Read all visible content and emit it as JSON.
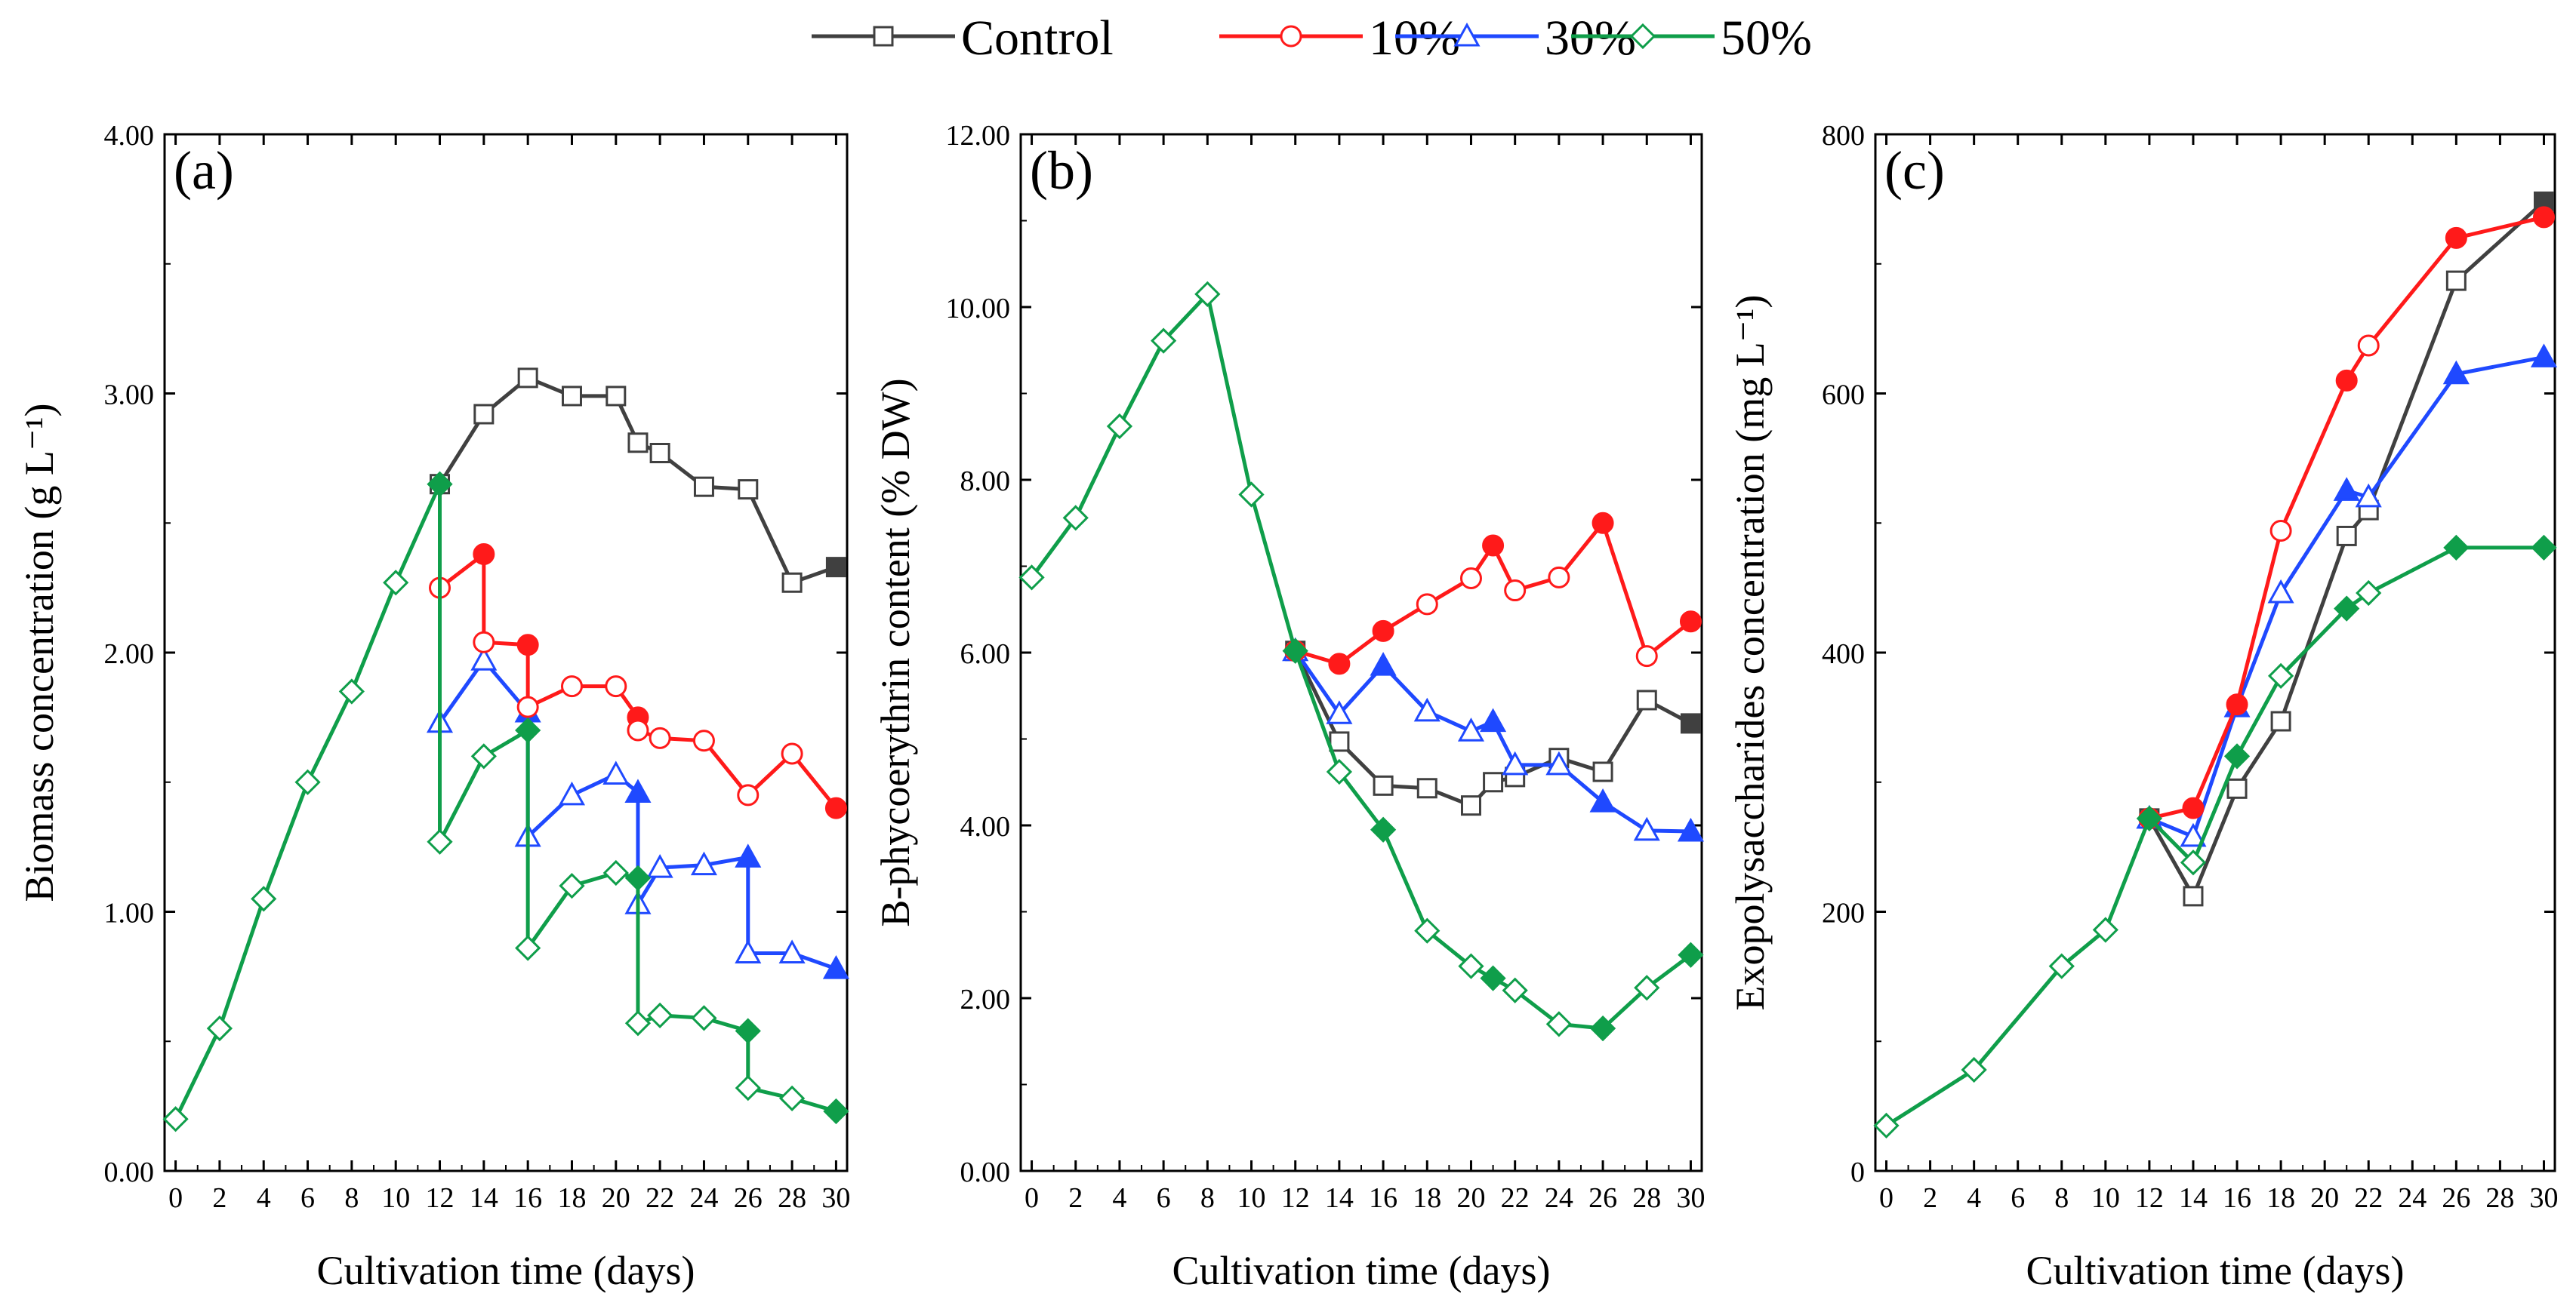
{
  "legend": [
    {
      "name": "Control",
      "color": "#404040",
      "marker": "square"
    },
    {
      "name": "10%",
      "color": "#ff1a1a",
      "marker": "circle"
    },
    {
      "name": "30%",
      "color": "#1f49ff",
      "marker": "triangle"
    },
    {
      "name": "50%",
      "color": "#0f9e4a",
      "marker": "diamond"
    }
  ],
  "chart_data": [
    {
      "type": "line",
      "panel_label": "(a)",
      "xlabel": "Cultivation time (days)",
      "ylabel": "Biomass concentration (g L⁻¹)",
      "xlim": [
        -0.5,
        30.5
      ],
      "xticks": [
        0,
        2,
        4,
        6,
        8,
        10,
        12,
        14,
        16,
        18,
        20,
        22,
        24,
        26,
        28,
        30
      ],
      "ylim": [
        0,
        4
      ],
      "yticks": [
        0,
        1,
        2,
        3,
        4
      ],
      "ytick_labels": [
        "0.00",
        "1.00",
        "2.00",
        "3.00",
        "4.00"
      ],
      "series": [
        {
          "name": "Control",
          "color": "#404040",
          "marker": "square",
          "points": [
            {
              "x": 12,
              "y": 2.65
            },
            {
              "x": 14,
              "y": 2.92
            },
            {
              "x": 16,
              "y": 3.06
            },
            {
              "x": 18,
              "y": 2.99
            },
            {
              "x": 20,
              "y": 2.99
            },
            {
              "x": 21,
              "y": 2.81
            },
            {
              "x": 22,
              "y": 2.77
            },
            {
              "x": 24,
              "y": 2.64
            },
            {
              "x": 26,
              "y": 2.63
            },
            {
              "x": 28,
              "y": 2.27
            },
            {
              "x": 30,
              "y": 2.33,
              "filled": true
            }
          ]
        },
        {
          "name": "10%",
          "color": "#ff1a1a",
          "marker": "circle",
          "points": [
            {
              "x": 12,
              "y": 2.25
            },
            {
              "x": 14,
              "y": 2.38,
              "filled": true
            },
            {
              "x": 14,
              "y": 2.04
            },
            {
              "x": 16,
              "y": 2.03,
              "filled": true
            },
            {
              "x": 16,
              "y": 1.79
            },
            {
              "x": 18,
              "y": 1.87
            },
            {
              "x": 20,
              "y": 1.87
            },
            {
              "x": 21,
              "y": 1.75,
              "filled": true
            },
            {
              "x": 21,
              "y": 1.7
            },
            {
              "x": 22,
              "y": 1.67
            },
            {
              "x": 24,
              "y": 1.66
            },
            {
              "x": 26,
              "y": 1.45
            },
            {
              "x": 28,
              "y": 1.61
            },
            {
              "x": 30,
              "y": 1.4,
              "filled": true
            }
          ]
        },
        {
          "name": "30%",
          "color": "#1f49ff",
          "marker": "triangle",
          "points": [
            {
              "x": 12,
              "y": 1.73
            },
            {
              "x": 14,
              "y": 1.97
            },
            {
              "x": 16,
              "y": 1.77,
              "filled": true
            },
            {
              "x": 16,
              "y": 1.29
            },
            {
              "x": 18,
              "y": 1.45
            },
            {
              "x": 20,
              "y": 1.53
            },
            {
              "x": 21,
              "y": 1.46,
              "filled": true
            },
            {
              "x": 21,
              "y": 1.03
            },
            {
              "x": 22,
              "y": 1.17
            },
            {
              "x": 24,
              "y": 1.18
            },
            {
              "x": 26,
              "y": 1.21,
              "filled": true
            },
            {
              "x": 26,
              "y": 0.84
            },
            {
              "x": 28,
              "y": 0.84
            },
            {
              "x": 30,
              "y": 0.78,
              "filled": true
            }
          ]
        },
        {
          "name": "50%",
          "color": "#0f9e4a",
          "marker": "diamond",
          "points": [
            {
              "x": 0,
              "y": 0.2
            },
            {
              "x": 2,
              "y": 0.55
            },
            {
              "x": 4,
              "y": 1.05
            },
            {
              "x": 6,
              "y": 1.5
            },
            {
              "x": 8,
              "y": 1.85
            },
            {
              "x": 10,
              "y": 2.27
            },
            {
              "x": 12,
              "y": 2.65,
              "filled": true
            },
            {
              "x": 12,
              "y": 1.27
            },
            {
              "x": 14,
              "y": 1.6
            },
            {
              "x": 16,
              "y": 1.7,
              "filled": true
            },
            {
              "x": 16,
              "y": 0.86
            },
            {
              "x": 18,
              "y": 1.1
            },
            {
              "x": 20,
              "y": 1.15
            },
            {
              "x": 21,
              "y": 1.13,
              "filled": true
            },
            {
              "x": 21,
              "y": 0.57
            },
            {
              "x": 22,
              "y": 0.6
            },
            {
              "x": 24,
              "y": 0.59
            },
            {
              "x": 26,
              "y": 0.54,
              "filled": true
            },
            {
              "x": 26,
              "y": 0.32
            },
            {
              "x": 28,
              "y": 0.28
            },
            {
              "x": 30,
              "y": 0.23,
              "filled": true
            }
          ]
        }
      ]
    },
    {
      "type": "line",
      "panel_label": "(b)",
      "xlabel": "Cultivation time (days)",
      "ylabel": "B-phycoerythrin content (% DW)",
      "xlim": [
        -0.5,
        30.5
      ],
      "xticks": [
        0,
        2,
        4,
        6,
        8,
        10,
        12,
        14,
        16,
        18,
        20,
        22,
        24,
        26,
        28,
        30
      ],
      "ylim": [
        0,
        12
      ],
      "yticks": [
        0,
        2,
        4,
        6,
        8,
        10,
        12
      ],
      "ytick_labels": [
        "0.00",
        "2.00",
        "4.00",
        "6.00",
        "8.00",
        "10.00",
        "12.00"
      ],
      "series": [
        {
          "name": "Control",
          "color": "#404040",
          "marker": "square",
          "points": [
            {
              "x": 12,
              "y": 6.02
            },
            {
              "x": 14,
              "y": 4.97
            },
            {
              "x": 16,
              "y": 4.46
            },
            {
              "x": 18,
              "y": 4.43
            },
            {
              "x": 20,
              "y": 4.23
            },
            {
              "x": 21,
              "y": 4.5
            },
            {
              "x": 22,
              "y": 4.56
            },
            {
              "x": 24,
              "y": 4.78
            },
            {
              "x": 26,
              "y": 4.62
            },
            {
              "x": 28,
              "y": 5.45
            },
            {
              "x": 30,
              "y": 5.18,
              "filled": true
            }
          ]
        },
        {
          "name": "10%",
          "color": "#ff1a1a",
          "marker": "circle",
          "points": [
            {
              "x": 12,
              "y": 6.02
            },
            {
              "x": 14,
              "y": 5.87,
              "filled": true
            },
            {
              "x": 16,
              "y": 6.25,
              "filled": true
            },
            {
              "x": 18,
              "y": 6.56
            },
            {
              "x": 20,
              "y": 6.86
            },
            {
              "x": 21,
              "y": 7.24,
              "filled": true
            },
            {
              "x": 22,
              "y": 6.72
            },
            {
              "x": 24,
              "y": 6.87
            },
            {
              "x": 26,
              "y": 7.5,
              "filled": true
            },
            {
              "x": 28,
              "y": 5.96
            },
            {
              "x": 30,
              "y": 6.36,
              "filled": true
            }
          ]
        },
        {
          "name": "30%",
          "color": "#1f49ff",
          "marker": "triangle",
          "points": [
            {
              "x": 12,
              "y": 6.02
            },
            {
              "x": 14,
              "y": 5.29
            },
            {
              "x": 16,
              "y": 5.85,
              "filled": true
            },
            {
              "x": 18,
              "y": 5.32
            },
            {
              "x": 20,
              "y": 5.09
            },
            {
              "x": 21,
              "y": 5.2,
              "filled": true
            },
            {
              "x": 22,
              "y": 4.7
            },
            {
              "x": 24,
              "y": 4.7
            },
            {
              "x": 26,
              "y": 4.27,
              "filled": true
            },
            {
              "x": 28,
              "y": 3.94
            },
            {
              "x": 30,
              "y": 3.93,
              "filled": true
            }
          ]
        },
        {
          "name": "50%",
          "color": "#0f9e4a",
          "marker": "diamond",
          "points": [
            {
              "x": 0,
              "y": 6.87
            },
            {
              "x": 2,
              "y": 7.56
            },
            {
              "x": 4,
              "y": 8.62
            },
            {
              "x": 6,
              "y": 9.61
            },
            {
              "x": 8,
              "y": 10.15
            },
            {
              "x": 10,
              "y": 7.83
            },
            {
              "x": 12,
              "y": 6.02,
              "filled": true
            },
            {
              "x": 14,
              "y": 4.62
            },
            {
              "x": 16,
              "y": 3.95,
              "filled": true
            },
            {
              "x": 18,
              "y": 2.78
            },
            {
              "x": 20,
              "y": 2.37
            },
            {
              "x": 21,
              "y": 2.23,
              "filled": true
            },
            {
              "x": 22,
              "y": 2.09
            },
            {
              "x": 24,
              "y": 1.7
            },
            {
              "x": 26,
              "y": 1.65,
              "filled": true
            },
            {
              "x": 28,
              "y": 2.12
            },
            {
              "x": 30,
              "y": 2.5,
              "filled": true
            }
          ]
        }
      ]
    },
    {
      "type": "line",
      "panel_label": "(c)",
      "xlabel": "Cultivation time (days)",
      "ylabel": "Exopolysaccharides concentration (mg L⁻¹)",
      "xlim": [
        -0.5,
        30.5
      ],
      "xticks": [
        0,
        2,
        4,
        6,
        8,
        10,
        12,
        14,
        16,
        18,
        20,
        22,
        24,
        26,
        28,
        30
      ],
      "ylim": [
        0,
        800
      ],
      "yticks": [
        0,
        200,
        400,
        600,
        800
      ],
      "ytick_labels": [
        "0",
        "200",
        "400",
        "600",
        "800"
      ],
      "series": [
        {
          "name": "Control",
          "color": "#404040",
          "marker": "square",
          "points": [
            {
              "x": 12,
              "y": 272
            },
            {
              "x": 14,
              "y": 212
            },
            {
              "x": 16,
              "y": 295
            },
            {
              "x": 18,
              "y": 347
            },
            {
              "x": 21,
              "y": 490
            },
            {
              "x": 22,
              "y": 510
            },
            {
              "x": 26,
              "y": 687
            },
            {
              "x": 30,
              "y": 748,
              "filled": true
            }
          ]
        },
        {
          "name": "10%",
          "color": "#ff1a1a",
          "marker": "circle",
          "points": [
            {
              "x": 12,
              "y": 272
            },
            {
              "x": 14,
              "y": 280,
              "filled": true
            },
            {
              "x": 16,
              "y": 360,
              "filled": true
            },
            {
              "x": 18,
              "y": 494
            },
            {
              "x": 21,
              "y": 610,
              "filled": true
            },
            {
              "x": 22,
              "y": 637
            },
            {
              "x": 26,
              "y": 720,
              "filled": true
            },
            {
              "x": 30,
              "y": 736,
              "filled": true
            }
          ]
        },
        {
          "name": "30%",
          "color": "#1f49ff",
          "marker": "triangle",
          "points": [
            {
              "x": 12,
              "y": 272
            },
            {
              "x": 14,
              "y": 258
            },
            {
              "x": 16,
              "y": 358,
              "filled": true
            },
            {
              "x": 18,
              "y": 446
            },
            {
              "x": 21,
              "y": 525,
              "filled": true
            },
            {
              "x": 22,
              "y": 520
            },
            {
              "x": 26,
              "y": 615,
              "filled": true
            },
            {
              "x": 30,
              "y": 628,
              "filled": true
            }
          ]
        },
        {
          "name": "50%",
          "color": "#0f9e4a",
          "marker": "diamond",
          "points": [
            {
              "x": 0,
              "y": 35
            },
            {
              "x": 4,
              "y": 78
            },
            {
              "x": 8,
              "y": 158
            },
            {
              "x": 10,
              "y": 186
            },
            {
              "x": 12,
              "y": 272,
              "filled": true
            },
            {
              "x": 14,
              "y": 238
            },
            {
              "x": 16,
              "y": 320,
              "filled": true
            },
            {
              "x": 18,
              "y": 382
            },
            {
              "x": 21,
              "y": 434,
              "filled": true
            },
            {
              "x": 22,
              "y": 446
            },
            {
              "x": 26,
              "y": 481,
              "filled": true
            },
            {
              "x": 30,
              "y": 481,
              "filled": true
            }
          ]
        }
      ]
    }
  ]
}
